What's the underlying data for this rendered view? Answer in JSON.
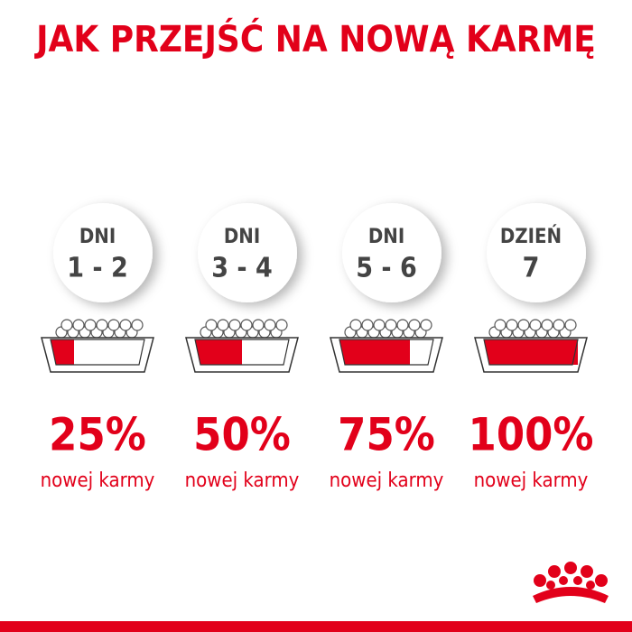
{
  "header": {
    "title": "JAK PRZEJŚĆ NA NOWĄ KARMĘ"
  },
  "steps": [
    {
      "label": "DNI",
      "days": "1 - 2",
      "percent": "25%",
      "caption": "nowej karmy"
    },
    {
      "label": "DNI",
      "days": "3 - 4",
      "percent": "50%",
      "caption": "nowej karmy"
    },
    {
      "label": "DNI",
      "days": "5 - 6",
      "percent": "75%",
      "caption": "nowej karmy"
    },
    {
      "label": "DZIEŃ",
      "days": "7",
      "percent": "100%",
      "caption": "nowej karmy"
    }
  ]
}
